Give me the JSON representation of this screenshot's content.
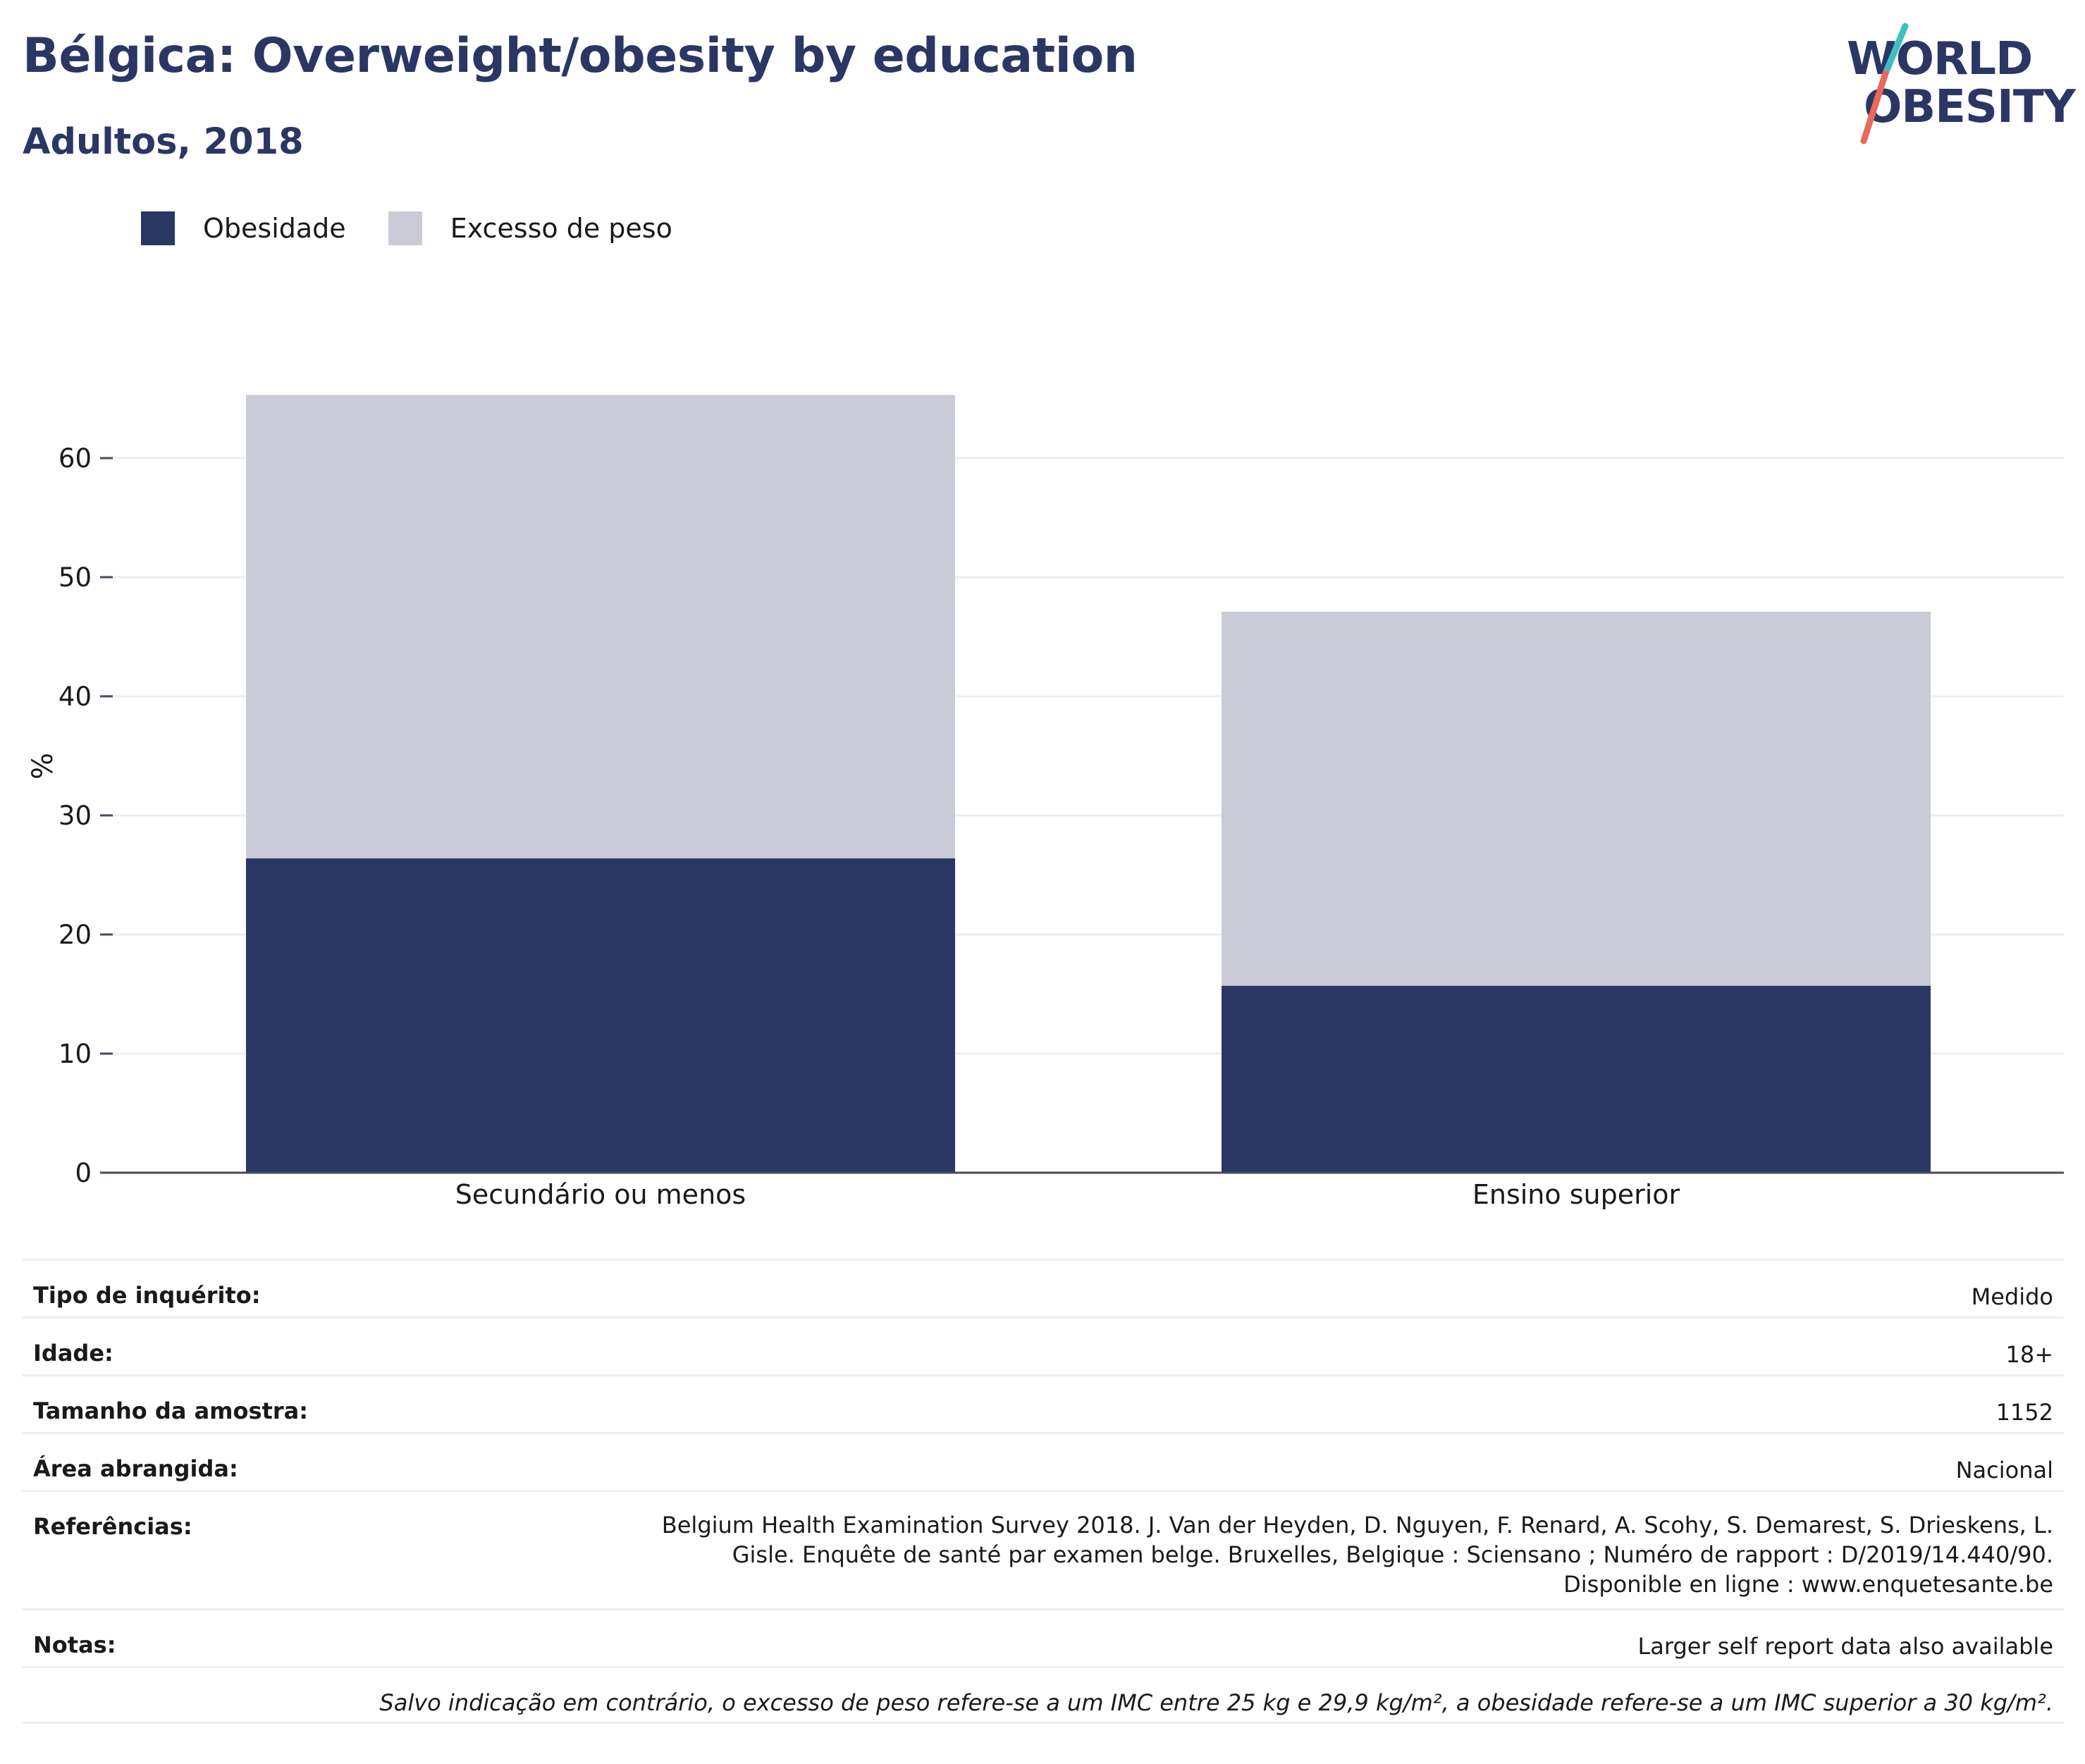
{
  "header": {
    "title": "Bélgica: Overweight/obesity by education",
    "subtitle": "Adultos, 2018"
  },
  "logo": {
    "line1": "WORLD",
    "line2": "OBESITY"
  },
  "colors": {
    "obesity": "#2a3764",
    "overweight": "#c9ccd7",
    "accent_teal": "#3ebfbf",
    "accent_coral": "#e8685a"
  },
  "chart_data": {
    "type": "bar",
    "stacked": true,
    "categories": [
      "Secundário ou menos",
      "Ensino superior"
    ],
    "series": [
      {
        "name": "Obesidade",
        "values": [
          26.4,
          15.7
        ],
        "color": "#2a3764"
      },
      {
        "name": "Excesso de peso",
        "values": [
          38.9,
          31.4
        ],
        "color": "#c9ccd7"
      }
    ],
    "ylabel": "%",
    "ylim": [
      0,
      68
    ],
    "yticks": [
      0,
      10,
      20,
      30,
      40,
      50,
      60
    ],
    "grid": true,
    "legend": "top-left"
  },
  "info": {
    "rows": [
      {
        "key": "Tipo de inquérito:",
        "value": "Medido"
      },
      {
        "key": "Idade:",
        "value": "18+"
      },
      {
        "key": "Tamanho da amostra:",
        "value": "1152"
      },
      {
        "key": "Área abrangida:",
        "value": "Nacional"
      },
      {
        "key": "Referências:",
        "value": "Belgium Health Examination Survey 2018. J. Van der Heyden, D. Nguyen, F. Renard, A. Scohy, S. Demarest, S. Drieskens, L. Gisle. Enquête de santé par examen belge. Bruxelles, Belgique : Sciensano ; Numéro de rapport : D/2019/14.440/90. Disponible en ligne : www.enquetesante.be"
      },
      {
        "key": "Notas:",
        "value": "Larger self report data also available"
      }
    ],
    "footnote": "Salvo indicação em contrário, o excesso de peso refere-se a um IMC entre 25 kg e 29,9 kg/m², a obesidade refere-se a um IMC superior a 30 kg/m²."
  }
}
